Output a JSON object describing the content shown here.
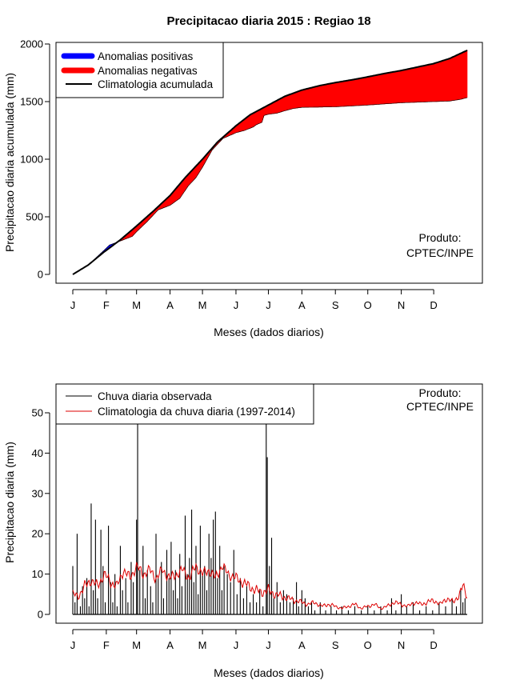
{
  "chart_data": [
    {
      "type": "area",
      "title": "Precipitacao diaria 2015 : Regiao 18",
      "xlabel": "Meses (dados diarios)",
      "ylabel": "Precipitacao diaria acumulada (mm)",
      "ylim": [
        0,
        2000
      ],
      "xlim": [
        1,
        366
      ],
      "yticks": [
        "0",
        "500",
        "1000",
        "1500",
        "2000"
      ],
      "month_labels": [
        "J",
        "F",
        "M",
        "A",
        "M",
        "J",
        "J",
        "A",
        "S",
        "O",
        "N",
        "D"
      ],
      "month_days": [
        1,
        32,
        60,
        91,
        121,
        152,
        182,
        213,
        244,
        274,
        305,
        335
      ],
      "legend": [
        "Anomalias positivas",
        "Anomalias negativas",
        "Climatologia acumulada"
      ],
      "colors": {
        "positive": "#0000ff",
        "negative": "#ff0000",
        "climatology": "#000000"
      },
      "product_label": [
        "Produto:",
        "CPTEC/INPE"
      ],
      "climatology_points": [
        [
          1,
          0
        ],
        [
          15,
          80
        ],
        [
          30,
          195
        ],
        [
          45,
          300
        ],
        [
          60,
          420
        ],
        [
          75,
          545
        ],
        [
          91,
          685
        ],
        [
          105,
          840
        ],
        [
          121,
          1000
        ],
        [
          135,
          1150
        ],
        [
          152,
          1290
        ],
        [
          165,
          1385
        ],
        [
          182,
          1470
        ],
        [
          197,
          1545
        ],
        [
          213,
          1600
        ],
        [
          230,
          1640
        ],
        [
          244,
          1665
        ],
        [
          260,
          1690
        ],
        [
          274,
          1715
        ],
        [
          290,
          1745
        ],
        [
          305,
          1770
        ],
        [
          320,
          1800
        ],
        [
          335,
          1830
        ],
        [
          350,
          1875
        ],
        [
          366,
          1945
        ]
      ],
      "observed_points": [
        [
          1,
          0
        ],
        [
          15,
          80
        ],
        [
          22,
          140
        ],
        [
          26,
          175
        ],
        [
          30,
          210
        ],
        [
          35,
          255
        ],
        [
          45,
          290
        ],
        [
          56,
          330
        ],
        [
          60,
          370
        ],
        [
          70,
          460
        ],
        [
          80,
          560
        ],
        [
          91,
          600
        ],
        [
          100,
          660
        ],
        [
          108,
          770
        ],
        [
          115,
          840
        ],
        [
          121,
          930
        ],
        [
          130,
          1080
        ],
        [
          140,
          1180
        ],
        [
          152,
          1230
        ],
        [
          160,
          1250
        ],
        [
          168,
          1280
        ],
        [
          171,
          1300
        ],
        [
          176,
          1320
        ],
        [
          178,
          1380
        ],
        [
          182,
          1390
        ],
        [
          190,
          1400
        ],
        [
          197,
          1420
        ],
        [
          205,
          1440
        ],
        [
          213,
          1450
        ],
        [
          244,
          1455
        ],
        [
          274,
          1470
        ],
        [
          305,
          1490
        ],
        [
          335,
          1500
        ],
        [
          350,
          1505
        ],
        [
          360,
          1520
        ],
        [
          366,
          1535
        ]
      ]
    },
    {
      "type": "bar",
      "xlabel": "Meses (dados diarios)",
      "ylabel": "Precipitacao diaria (mm)",
      "ylim": [
        0,
        55
      ],
      "yticks": [
        "0",
        "10",
        "20",
        "30",
        "40",
        "50"
      ],
      "month_labels": [
        "J",
        "F",
        "M",
        "A",
        "M",
        "J",
        "J",
        "A",
        "S",
        "O",
        "N",
        "D"
      ],
      "month_days": [
        1,
        32,
        60,
        91,
        121,
        152,
        182,
        213,
        244,
        274,
        305,
        335
      ],
      "legend": [
        "Chuva diaria observada",
        "Climatologia da chuva diaria (1997-2014)"
      ],
      "colors": {
        "observed": "#000000",
        "climatology": "#dd0000"
      },
      "product_label": [
        "Produto:",
        "CPTEC/INPE"
      ],
      "observed_peaks": [
        [
          1,
          12
        ],
        [
          3,
          3
        ],
        [
          5,
          20
        ],
        [
          8,
          2
        ],
        [
          10,
          7
        ],
        [
          12,
          4
        ],
        [
          14,
          9
        ],
        [
          16,
          2
        ],
        [
          18,
          27.5
        ],
        [
          20,
          6
        ],
        [
          22,
          23.5
        ],
        [
          24,
          4
        ],
        [
          27,
          21
        ],
        [
          29,
          12
        ],
        [
          31,
          3
        ],
        [
          34,
          22
        ],
        [
          36,
          8
        ],
        [
          38,
          3
        ],
        [
          40,
          10
        ],
        [
          42,
          2
        ],
        [
          45,
          17
        ],
        [
          47,
          6
        ],
        [
          50,
          9
        ],
        [
          52,
          3
        ],
        [
          55,
          13
        ],
        [
          57,
          8
        ],
        [
          60,
          23.5
        ],
        [
          61,
          58
        ],
        [
          63,
          11
        ],
        [
          66,
          17
        ],
        [
          68,
          4
        ],
        [
          70,
          11
        ],
        [
          73,
          7
        ],
        [
          75,
          3
        ],
        [
          78,
          20
        ],
        [
          80,
          9
        ],
        [
          83,
          13
        ],
        [
          85,
          4
        ],
        [
          88,
          16
        ],
        [
          90,
          9
        ],
        [
          92,
          18
        ],
        [
          94,
          6
        ],
        [
          96,
          11
        ],
        [
          98,
          4
        ],
        [
          100,
          15
        ],
        [
          102,
          7
        ],
        [
          105,
          24.5
        ],
        [
          107,
          10
        ],
        [
          109,
          14
        ],
        [
          111,
          26
        ],
        [
          113,
          8
        ],
        [
          115,
          17
        ],
        [
          117,
          5
        ],
        [
          119,
          22
        ],
        [
          121,
          10
        ],
        [
          123,
          12
        ],
        [
          125,
          6
        ],
        [
          127,
          20
        ],
        [
          129,
          14
        ],
        [
          131,
          23.5
        ],
        [
          133,
          25.5
        ],
        [
          135,
          9
        ],
        [
          137,
          17
        ],
        [
          139,
          6
        ],
        [
          141,
          12
        ],
        [
          144,
          10
        ],
        [
          147,
          8
        ],
        [
          150,
          16
        ],
        [
          153,
          5
        ],
        [
          156,
          9
        ],
        [
          159,
          4
        ],
        [
          162,
          7
        ],
        [
          165,
          3
        ],
        [
          168,
          5
        ],
        [
          171,
          3
        ],
        [
          174,
          6
        ],
        [
          177,
          2
        ],
        [
          180,
          58
        ],
        [
          181,
          39
        ],
        [
          183,
          12
        ],
        [
          185,
          19
        ],
        [
          187,
          4
        ],
        [
          190,
          8
        ],
        [
          193,
          3
        ],
        [
          196,
          6
        ],
        [
          199,
          5
        ],
        [
          202,
          3
        ],
        [
          205,
          4
        ],
        [
          208,
          8
        ],
        [
          210,
          2
        ],
        [
          213,
          6
        ],
        [
          216,
          4
        ],
        [
          219,
          2
        ],
        [
          222,
          3
        ],
        [
          225,
          1
        ],
        [
          230,
          3
        ],
        [
          235,
          1
        ],
        [
          240,
          2
        ],
        [
          245,
          1
        ],
        [
          250,
          2
        ],
        [
          256,
          1
        ],
        [
          262,
          2
        ],
        [
          268,
          1
        ],
        [
          274,
          2
        ],
        [
          280,
          1
        ],
        [
          286,
          2
        ],
        [
          292,
          1
        ],
        [
          296,
          4
        ],
        [
          300,
          1
        ],
        [
          305,
          5
        ],
        [
          310,
          2
        ],
        [
          316,
          3
        ],
        [
          322,
          1
        ],
        [
          328,
          2
        ],
        [
          334,
          1
        ],
        [
          340,
          3
        ],
        [
          346,
          2
        ],
        [
          352,
          4
        ],
        [
          356,
          2
        ],
        [
          360,
          6
        ],
        [
          362,
          3
        ],
        [
          364,
          4
        ]
      ],
      "climatology_points": [
        [
          1,
          5
        ],
        [
          6,
          4.5
        ],
        [
          12,
          7
        ],
        [
          18,
          8.5
        ],
        [
          24,
          7
        ],
        [
          30,
          10
        ],
        [
          36,
          8
        ],
        [
          42,
          7
        ],
        [
          48,
          11
        ],
        [
          54,
          9
        ],
        [
          60,
          12
        ],
        [
          66,
          10
        ],
        [
          72,
          11
        ],
        [
          78,
          9
        ],
        [
          84,
          11
        ],
        [
          91,
          9
        ],
        [
          97,
          10
        ],
        [
          103,
          11
        ],
        [
          109,
          9
        ],
        [
          115,
          12
        ],
        [
          121,
          10
        ],
        [
          127,
          11
        ],
        [
          133,
          9
        ],
        [
          139,
          12
        ],
        [
          145,
          10
        ],
        [
          152,
          9
        ],
        [
          158,
          8
        ],
        [
          164,
          7
        ],
        [
          170,
          6
        ],
        [
          176,
          5.5
        ],
        [
          182,
          6
        ],
        [
          188,
          5
        ],
        [
          194,
          4.5
        ],
        [
          200,
          4
        ],
        [
          206,
          3.5
        ],
        [
          213,
          3
        ],
        [
          219,
          2.5
        ],
        [
          225,
          3
        ],
        [
          231,
          2
        ],
        [
          237,
          2.5
        ],
        [
          244,
          2
        ],
        [
          250,
          1.5
        ],
        [
          256,
          2
        ],
        [
          262,
          2.5
        ],
        [
          268,
          1.5
        ],
        [
          274,
          2
        ],
        [
          280,
          2.5
        ],
        [
          286,
          1.5
        ],
        [
          292,
          2
        ],
        [
          298,
          3
        ],
        [
          305,
          2.5
        ],
        [
          311,
          2
        ],
        [
          317,
          3
        ],
        [
          323,
          2.5
        ],
        [
          329,
          3
        ],
        [
          335,
          3.5
        ],
        [
          341,
          2.5
        ],
        [
          347,
          4
        ],
        [
          353,
          3
        ],
        [
          359,
          5
        ],
        [
          362,
          7
        ],
        [
          366,
          4.5
        ]
      ]
    }
  ]
}
